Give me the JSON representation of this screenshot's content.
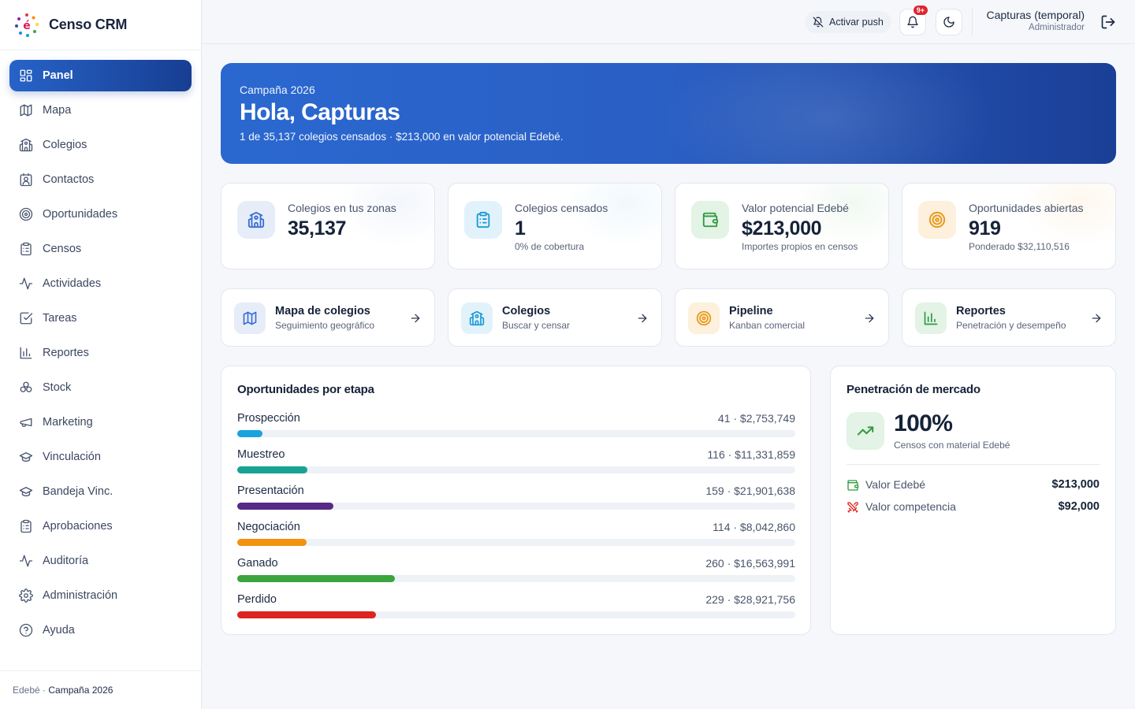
{
  "brand": {
    "name": "Censo CRM"
  },
  "nav": [
    {
      "label": "Panel",
      "icon": "dashboard-icon",
      "active": true
    },
    {
      "label": "Mapa",
      "icon": "map-icon"
    },
    {
      "label": "Colegios",
      "icon": "school-icon"
    },
    {
      "label": "Contactos",
      "icon": "contact-icon"
    },
    {
      "label": "Oportunidades",
      "icon": "target-icon"
    },
    {
      "label": "Censos",
      "icon": "clipboard-icon"
    },
    {
      "label": "Actividades",
      "icon": "activity-icon"
    },
    {
      "label": "Tareas",
      "icon": "checkbox-icon"
    },
    {
      "label": "Reportes",
      "icon": "bar-chart-icon"
    },
    {
      "label": "Stock",
      "icon": "boxes-icon"
    },
    {
      "label": "Marketing",
      "icon": "megaphone-icon"
    },
    {
      "label": "Vinculación",
      "icon": "graduation-cap-icon"
    },
    {
      "label": "Bandeja Vinc.",
      "icon": "graduation-cap-icon"
    },
    {
      "label": "Aprobaciones",
      "icon": "clipboard-icon"
    },
    {
      "label": "Auditoría",
      "icon": "activity-icon"
    },
    {
      "label": "Administración",
      "icon": "gear-icon"
    },
    {
      "label": "Ayuda",
      "icon": "help-icon"
    }
  ],
  "footer": {
    "org": "Edebé · ",
    "campaign": "Campaña 2026"
  },
  "topbar": {
    "push_label": "Activar push",
    "notif_badge": "9+",
    "user_name": "Capturas (temporal)",
    "user_role": "Administrador"
  },
  "hero": {
    "subtitle": "Campaña 2026",
    "title": "Hola, Capturas",
    "description": "1 de 35,137 colegios censados · $213,000 en valor potencial Edebé."
  },
  "stats": [
    {
      "label": "Colegios en tus zonas",
      "value": "35,137",
      "note": "",
      "icon": "school-icon",
      "color": "#3b6fd4",
      "bg": "#e6edf8"
    },
    {
      "label": "Colegios censados",
      "value": "1",
      "note": "0% de cobertura",
      "icon": "clipboard-icon",
      "color": "#1b9ad6",
      "bg": "#e2f2fb"
    },
    {
      "label": "Valor potencial Edebé",
      "value": "$213,000",
      "note": "Importes propios en censos",
      "icon": "wallet-icon",
      "color": "#2e9a3f",
      "bg": "#e3f3e5"
    },
    {
      "label": "Oportunidades abiertas",
      "value": "919",
      "note": "Ponderado $32,110,516",
      "icon": "target-icon",
      "color": "#e89410",
      "bg": "#fdf0dc"
    }
  ],
  "quicklinks": [
    {
      "title": "Mapa de colegios",
      "subtitle": "Seguimiento geográfico",
      "icon": "map-icon",
      "color": "#3b6fd4",
      "bg": "#e6edf8"
    },
    {
      "title": "Colegios",
      "subtitle": "Buscar y censar",
      "icon": "school-icon",
      "color": "#1b9ad6",
      "bg": "#e2f2fb"
    },
    {
      "title": "Pipeline",
      "subtitle": "Kanban comercial",
      "icon": "target-icon",
      "color": "#e89410",
      "bg": "#fdf0dc"
    },
    {
      "title": "Reportes",
      "subtitle": "Penetración y desempeño",
      "icon": "bar-chart-icon",
      "color": "#2e9a3f",
      "bg": "#e3f3e5"
    }
  ],
  "pipeline": {
    "title": "Oportunidades por etapa",
    "stages": [
      {
        "name": "Prospección",
        "value": "41 · $2,753,749",
        "fraction": 0.045,
        "color": "#1aa3dc"
      },
      {
        "name": "Muestreo",
        "value": "116 · $11,331,859",
        "fraction": 0.126,
        "color": "#16a394"
      },
      {
        "name": "Presentación",
        "value": "159 · $21,901,638",
        "fraction": 0.173,
        "color": "#562a86"
      },
      {
        "name": "Negociación",
        "value": "114 · $8,042,860",
        "fraction": 0.124,
        "color": "#f2920e"
      },
      {
        "name": "Ganado",
        "value": "260 · $16,563,991",
        "fraction": 0.283,
        "color": "#3aa53c"
      },
      {
        "name": "Perdido",
        "value": "229 · $28,921,756",
        "fraction": 0.249,
        "color": "#dc2420"
      }
    ]
  },
  "market": {
    "title": "Penetración de mercado",
    "value": "100%",
    "caption": "Censos con material Edebé",
    "rows": [
      {
        "label": "Valor Edebé",
        "value": "$213,000",
        "icon": "wallet-icon",
        "color": "#2e9a3f"
      },
      {
        "label": "Valor competencia",
        "value": "$92,000",
        "icon": "swords-icon",
        "color": "#dc2420"
      }
    ]
  }
}
